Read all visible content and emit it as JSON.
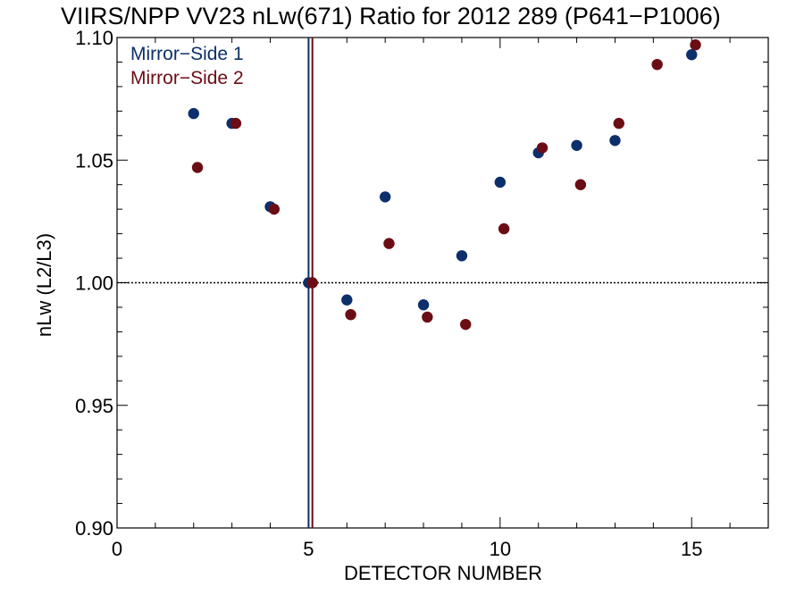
{
  "chart_data": {
    "type": "scatter",
    "title": "VIIRS/NPP VV23 nLw(671) Ratio for 2012 289 (P641−P1006)",
    "xlabel": "DETECTOR NUMBER",
    "ylabel": "nLw (L2/L3)",
    "xlim": [
      0,
      17
    ],
    "ylim": [
      0.9,
      1.1
    ],
    "xticks": [
      0,
      5,
      10,
      15
    ],
    "xtick_labels": [
      "0",
      "5",
      "10",
      "15"
    ],
    "yticks": [
      0.9,
      0.95,
      1.0,
      1.05,
      1.1
    ],
    "ytick_labels": [
      "0.90",
      "0.95",
      "1.00",
      "1.05",
      "1.10"
    ],
    "reference_line": {
      "y": 1.0,
      "style": "dotted"
    },
    "vertical_lines": [
      {
        "x": 5.0,
        "series": "Mirror−Side 1"
      },
      {
        "x": 5.1,
        "series": "Mirror−Side 2"
      }
    ],
    "legend_position": "top-left",
    "series": [
      {
        "name": "Mirror−Side 1",
        "color": "#0d2f6b",
        "x": [
          2,
          3,
          4,
          5,
          6,
          7,
          8,
          9,
          10,
          11,
          12,
          13,
          15
        ],
        "y": [
          1.069,
          1.065,
          1.031,
          1.0,
          0.993,
          1.035,
          0.991,
          1.011,
          1.041,
          1.053,
          1.056,
          1.058,
          1.093
        ]
      },
      {
        "name": "Mirror−Side 2",
        "color": "#6b0d14",
        "x": [
          2.1,
          3.1,
          4.1,
          5.1,
          6.1,
          7.1,
          8.1,
          9.1,
          10.1,
          11.1,
          12.1,
          13.1,
          14.1,
          15.1
        ],
        "y": [
          1.047,
          1.065,
          1.03,
          1.0,
          0.987,
          1.016,
          0.986,
          0.983,
          1.022,
          1.055,
          1.04,
          1.065,
          1.089,
          1.097
        ]
      }
    ]
  }
}
